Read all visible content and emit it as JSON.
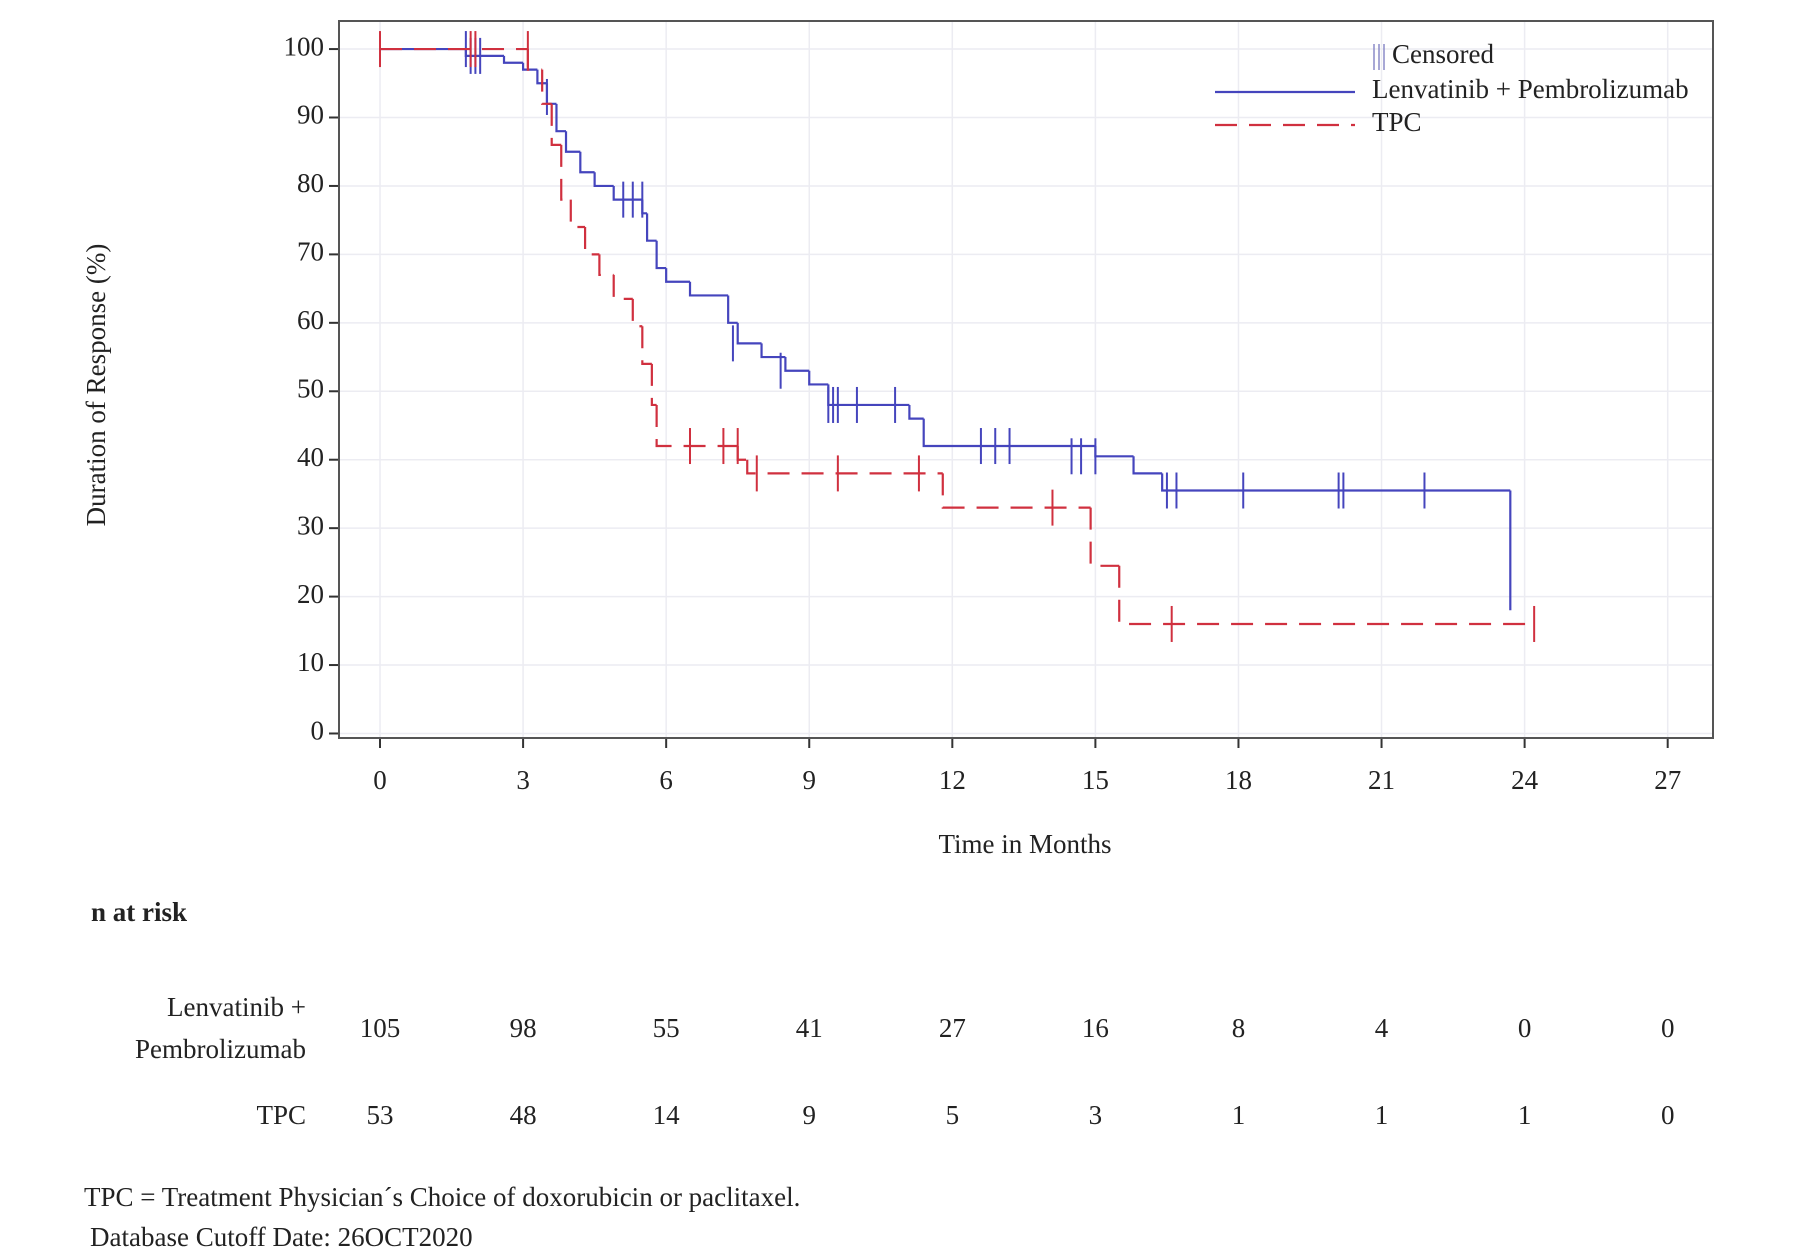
{
  "chart_data": {
    "type": "kaplan-meier",
    "xlabel": "Time in Months",
    "ylabel": "Duration of Response (%)",
    "xlim": [
      -0.86,
      27.95
    ],
    "ylim": [
      -0.66,
      104.1
    ],
    "xticks": [
      0,
      3,
      6,
      9,
      12,
      15,
      18,
      21,
      24,
      27
    ],
    "yticks": [
      0,
      10,
      20,
      30,
      40,
      50,
      60,
      70,
      80,
      90,
      100
    ],
    "grid": true,
    "legend": "upper right",
    "censored_label": "Censored",
    "series": [
      {
        "name": "Lenvatinib + Pembrolizumab",
        "color": "#4545bd",
        "dashed": false,
        "x": [
          0,
          1.8,
          2.6,
          3.0,
          3.3,
          3.5,
          3.7,
          3.9,
          4.2,
          4.5,
          4.9,
          5.5,
          5.6,
          5.8,
          6.0,
          6.5,
          7.3,
          7.5,
          8.0,
          8.5,
          9.0,
          9.4,
          11.1,
          11.4,
          15.0,
          15.8,
          16.4,
          23.7
        ],
        "values": [
          100,
          99,
          98,
          97,
          95,
          92,
          88,
          85,
          82,
          80,
          78,
          76,
          72,
          68,
          66,
          64,
          60,
          57,
          55,
          53,
          51,
          48,
          46,
          42,
          40.5,
          38,
          35.5,
          18
        ],
        "censored_x": [
          1.8,
          1.9,
          2.0,
          2.1,
          3.5,
          5.1,
          5.3,
          5.5,
          7.4,
          8.4,
          9.4,
          9.5,
          9.6,
          10.0,
          10.8,
          12.6,
          12.9,
          13.2,
          14.5,
          14.7,
          15.0,
          16.5,
          16.7,
          18.1,
          20.1,
          20.2,
          21.9
        ],
        "censored_y": [
          100,
          99,
          99,
          99,
          93,
          78,
          78,
          78,
          57,
          53,
          48,
          48,
          48,
          48,
          48,
          42,
          42,
          42,
          40.5,
          40.5,
          40.5,
          35.5,
          35.5,
          35.5,
          35.5,
          35.5,
          35.5
        ]
      },
      {
        "name": "TPC",
        "color": "#d0303f",
        "dashed": true,
        "x": [
          0,
          3.1,
          3.4,
          3.6,
          3.8,
          4.0,
          4.3,
          4.6,
          4.9,
          5.3,
          5.5,
          5.7,
          5.8,
          7.5,
          7.7,
          11.8,
          14.9,
          15.5,
          24.2
        ],
        "values": [
          100,
          97,
          92,
          86,
          78,
          74,
          70,
          67,
          63.5,
          59.5,
          54,
          48,
          42,
          40,
          38,
          33,
          24.5,
          16,
          16
        ],
        "censored_x": [
          0,
          1.9,
          2.0,
          3.1,
          6.5,
          7.2,
          7.5,
          7.9,
          9.6,
          11.3,
          14.1,
          16.6,
          24.2
        ],
        "censored_y": [
          100,
          100,
          100,
          100,
          42,
          42,
          42,
          38,
          38,
          38,
          33,
          16,
          16
        ]
      }
    ],
    "risk_table": {
      "title": "n at risk",
      "rows": [
        {
          "label": [
            "Lenvatinib +",
            "Pembrolizumab"
          ],
          "values": [
            105,
            98,
            55,
            41,
            27,
            16,
            8,
            4,
            0,
            0
          ]
        },
        {
          "label": [
            "TPC"
          ],
          "values": [
            53,
            48,
            14,
            9,
            5,
            3,
            1,
            1,
            1,
            0
          ]
        }
      ]
    },
    "footnotes": [
      "TPC = Treatment Physician´s Choice of doxorubicin or paclitaxel.",
      "Database Cutoff Date: 26OCT2020"
    ]
  }
}
